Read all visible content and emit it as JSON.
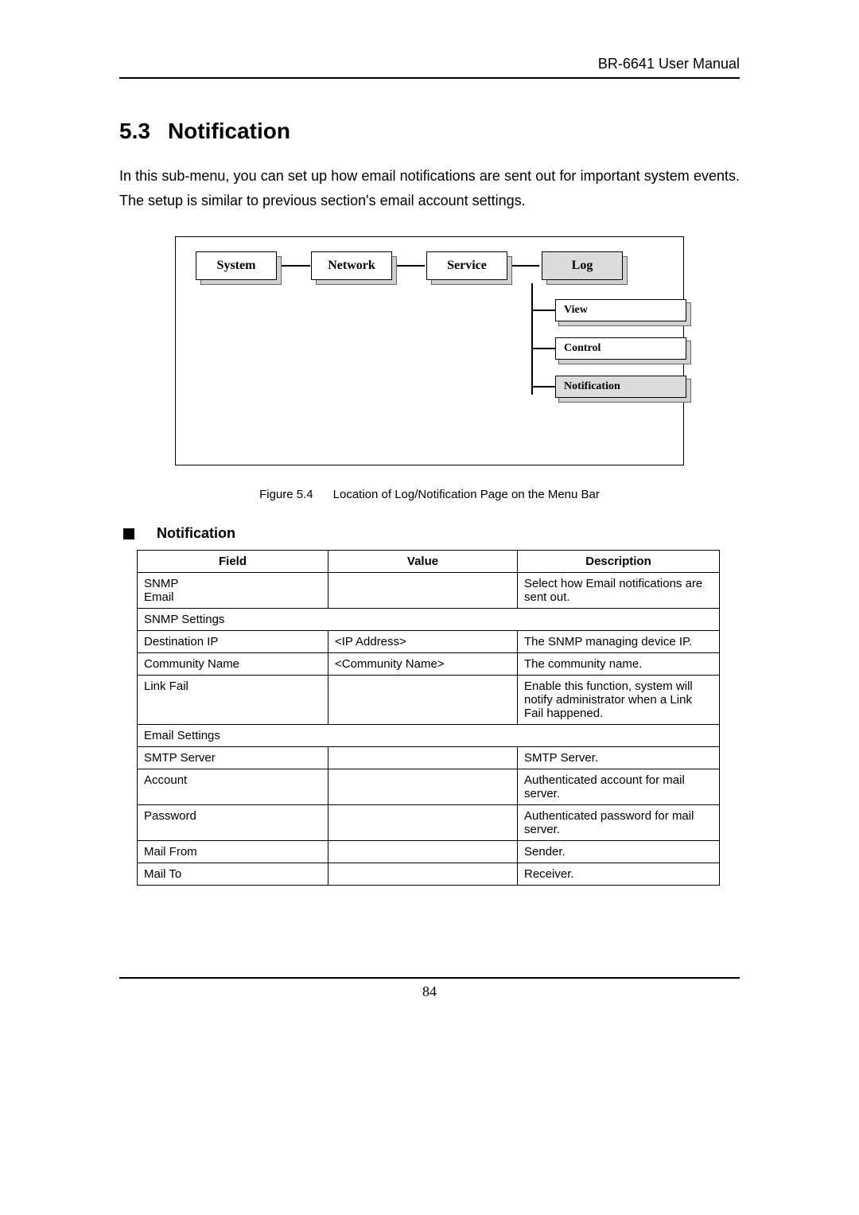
{
  "header": {
    "title": "BR-6641 User Manual"
  },
  "section": {
    "number": "5.3",
    "title": "Notification",
    "intro": "In this sub-menu, you can set up how email notifications are sent out for important system events. The setup is similar to previous section's email account settings."
  },
  "diagram": {
    "tabs": [
      "System",
      "Network",
      "Service",
      "Log"
    ],
    "selected_tab_index": 3,
    "sub_items": [
      "View",
      "Control",
      "Notification"
    ],
    "selected_sub_index": 2
  },
  "figure": {
    "label": "Figure 5.4",
    "caption": "Location of Log/Notification Page on the Menu Bar"
  },
  "subhead": "Notification",
  "table": {
    "columns": [
      "Field",
      "Value",
      "Description"
    ],
    "rows": [
      {
        "type": "row",
        "field_lines": [
          "SNMP",
          "Email"
        ],
        "value": "",
        "desc": "Select how Email notifications are sent out.",
        "desc_justify": true
      },
      {
        "type": "span",
        "text": "SNMP Settings"
      },
      {
        "type": "row",
        "field_lines": [
          "Destination IP"
        ],
        "value": "<IP Address>",
        "desc": "The SNMP managing device IP.",
        "desc_justify": true
      },
      {
        "type": "row",
        "field_lines": [
          "Community Name"
        ],
        "value": "<Community Name>",
        "desc": "The community name."
      },
      {
        "type": "row",
        "field_lines": [
          "Link Fail"
        ],
        "value": "",
        "desc": "Enable this function, system will notify administrator when a Link Fail happened.",
        "desc_justify": true
      },
      {
        "type": "span",
        "text": "Email Settings"
      },
      {
        "type": "row",
        "field_lines": [
          "SMTP Server"
        ],
        "value": "",
        "desc": "SMTP Server."
      },
      {
        "type": "row",
        "field_lines": [
          "Account"
        ],
        "value": "",
        "desc": "Authenticated account for mail server.",
        "desc_justify": true
      },
      {
        "type": "row",
        "field_lines": [
          "Password"
        ],
        "value": "",
        "desc": "Authenticated password for mail server.",
        "desc_justify": true
      },
      {
        "type": "row",
        "field_lines": [
          "Mail From"
        ],
        "value": "",
        "desc": "Sender."
      },
      {
        "type": "row",
        "field_lines": [
          "Mail To"
        ],
        "value": "",
        "desc": "Receiver."
      }
    ]
  },
  "page_number": "84"
}
